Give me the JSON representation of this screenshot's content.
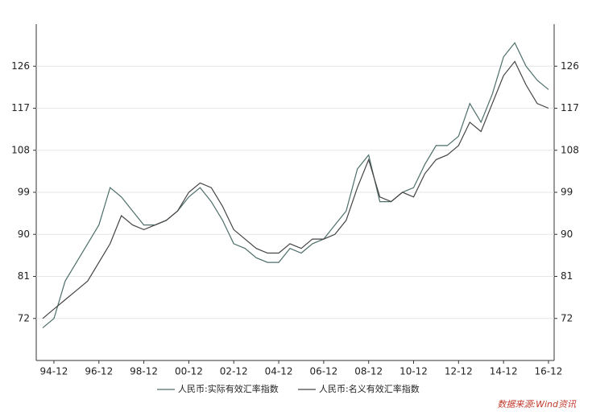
{
  "chart_data": {
    "type": "line",
    "categories": [
      null,
      "94-12",
      null,
      null,
      null,
      "96-12",
      null,
      null,
      null,
      "98-12",
      null,
      null,
      null,
      "00-12",
      null,
      null,
      null,
      "02-12",
      null,
      null,
      null,
      "04-12",
      null,
      null,
      null,
      "06-12",
      null,
      null,
      null,
      "08-12",
      null,
      null,
      null,
      "10-12",
      null,
      null,
      null,
      "12-12",
      null,
      null,
      null,
      "14-12",
      null,
      null,
      null,
      "16-12"
    ],
    "series": [
      {
        "name": "人民币:实际有效汇率指数",
        "color": "#4d6e6a",
        "values": [
          70,
          72,
          80,
          84,
          88,
          92,
          100,
          98,
          95,
          92,
          92,
          93,
          95,
          98,
          100,
          97,
          93,
          88,
          87,
          85,
          84,
          84,
          87,
          86,
          88,
          89,
          92,
          95,
          104,
          107,
          97,
          97,
          99,
          100,
          105,
          109,
          109,
          111,
          118,
          114,
          120,
          128,
          131,
          126,
          123,
          121
        ]
      },
      {
        "name": "人民币:名义有效汇率指数",
        "color": "#444444",
        "values": [
          72,
          74,
          76,
          78,
          80,
          84,
          88,
          94,
          92,
          91,
          92,
          93,
          95,
          99,
          101,
          100,
          96,
          91,
          89,
          87,
          86,
          86,
          88,
          87,
          89,
          89,
          90,
          93,
          100,
          106,
          98,
          97,
          99,
          98,
          103,
          106,
          107,
          109,
          114,
          112,
          118,
          124,
          127,
          122,
          118,
          117
        ]
      }
    ],
    "ylim": [
      63,
      135
    ],
    "yticks": [
      72,
      81,
      90,
      99,
      108,
      117,
      126
    ],
    "y2lim": [
      63,
      135
    ],
    "y2ticks": [
      72,
      81,
      90,
      99,
      108,
      117,
      126
    ],
    "grid": true,
    "source": "数据来源:Wind资讯"
  }
}
